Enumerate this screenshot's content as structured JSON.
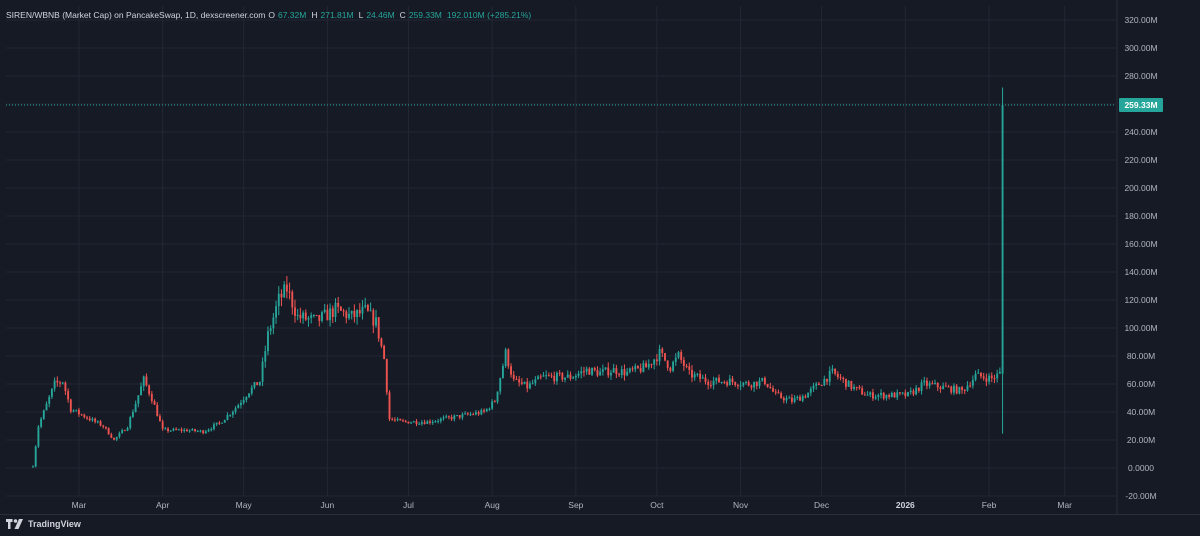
{
  "legend": {
    "symbol": "SIREN/WBNB (Market Cap) on PancakeSwap, 1D, dexscreener.com",
    "o_label": "O",
    "o_value": "67.32M",
    "h_label": "H",
    "h_value": "271.81M",
    "l_label": "L",
    "l_value": "24.46M",
    "c_label": "C",
    "c_value": "259.33M",
    "change": "192.010M (+285.21%)"
  },
  "last_price_badge": "259.33M",
  "branding": "TradingView",
  "colors": {
    "background": "#161a25",
    "grid": "#232734",
    "up": "#26a69a",
    "down": "#ef5350",
    "axis_text": "#b2b5be",
    "price_line": "#26a69a"
  },
  "chart_data": {
    "type": "candlestick",
    "title": "SIREN/WBNB (Market Cap) on PancakeSwap, 1D, dexscreener.com",
    "y_unit": "USD market cap (millions)",
    "ylim": [
      -20,
      330
    ],
    "y_ticks": [
      -20,
      0,
      20,
      40,
      60,
      80,
      100,
      120,
      140,
      160,
      180,
      200,
      220,
      240,
      260,
      280,
      300,
      320
    ],
    "y_tick_labels": [
      "-20.00M",
      "0.0000",
      "20.00M",
      "40.00M",
      "60.00M",
      "80.00M",
      "100.00M",
      "120.00M",
      "140.00M",
      "160.00M",
      "180.00M",
      "200.00M",
      "220.00M",
      "240.00M",
      "260.00M",
      "280.00M",
      "300.00M",
      "320.00M"
    ],
    "x_range": [
      "2025-02-02",
      "2026-03-20"
    ],
    "x_ticks": [
      {
        "label": "Mar",
        "date": "2025-03-01",
        "bold": false
      },
      {
        "label": "Apr",
        "date": "2025-04-01",
        "bold": false
      },
      {
        "label": "May",
        "date": "2025-05-01",
        "bold": false
      },
      {
        "label": "Jun",
        "date": "2025-06-01",
        "bold": false
      },
      {
        "label": "Jul",
        "date": "2025-07-01",
        "bold": false
      },
      {
        "label": "Aug",
        "date": "2025-08-01",
        "bold": false
      },
      {
        "label": "Sep",
        "date": "2025-09-01",
        "bold": false
      },
      {
        "label": "Oct",
        "date": "2025-10-01",
        "bold": false
      },
      {
        "label": "Nov",
        "date": "2025-11-01",
        "bold": false
      },
      {
        "label": "Dec",
        "date": "2025-12-01",
        "bold": false
      },
      {
        "label": "2026",
        "date": "2026-01-01",
        "bold": true
      },
      {
        "label": "Feb",
        "date": "2026-02-01",
        "bold": false
      },
      {
        "label": "Mar",
        "date": "2026-03-01",
        "bold": false
      }
    ],
    "grid": true,
    "last_close": 259.33,
    "first_date": "2025-02-12",
    "anchors": [
      [
        "2025-02-12",
        2
      ],
      [
        "2025-02-14",
        30
      ],
      [
        "2025-02-17",
        45
      ],
      [
        "2025-02-20",
        60
      ],
      [
        "2025-02-23",
        62
      ],
      [
        "2025-02-26",
        42
      ],
      [
        "2025-03-05",
        35
      ],
      [
        "2025-03-10",
        30
      ],
      [
        "2025-03-14",
        20
      ],
      [
        "2025-03-19",
        30
      ],
      [
        "2025-03-25",
        63
      ],
      [
        "2025-03-28",
        50
      ],
      [
        "2025-04-01",
        27
      ],
      [
        "2025-04-10",
        27
      ],
      [
        "2025-04-16",
        26
      ],
      [
        "2025-04-22",
        32
      ],
      [
        "2025-04-28",
        43
      ],
      [
        "2025-05-03",
        55
      ],
      [
        "2025-05-07",
        62
      ],
      [
        "2025-05-10",
        95
      ],
      [
        "2025-05-14",
        120
      ],
      [
        "2025-05-17",
        128
      ],
      [
        "2025-05-21",
        108
      ],
      [
        "2025-05-28",
        105
      ],
      [
        "2025-06-04",
        113
      ],
      [
        "2025-06-10",
        108
      ],
      [
        "2025-06-15",
        112
      ],
      [
        "2025-06-19",
        104
      ],
      [
        "2025-06-22",
        78
      ],
      [
        "2025-06-24",
        35
      ],
      [
        "2025-06-28",
        33
      ],
      [
        "2025-07-08",
        33
      ],
      [
        "2025-07-20",
        37
      ],
      [
        "2025-07-29",
        40
      ],
      [
        "2025-08-02",
        48
      ],
      [
        "2025-08-06",
        82
      ],
      [
        "2025-08-09",
        62
      ],
      [
        "2025-08-14",
        58
      ],
      [
        "2025-08-20",
        65
      ],
      [
        "2025-08-30",
        65
      ],
      [
        "2025-09-05",
        70
      ],
      [
        "2025-09-10",
        68
      ],
      [
        "2025-09-15",
        70
      ],
      [
        "2025-09-20",
        68
      ],
      [
        "2025-09-27",
        72
      ],
      [
        "2025-10-02",
        82
      ],
      [
        "2025-10-06",
        72
      ],
      [
        "2025-10-09",
        80
      ],
      [
        "2025-10-13",
        67
      ],
      [
        "2025-10-20",
        62
      ],
      [
        "2025-10-28",
        62
      ],
      [
        "2025-11-04",
        60
      ],
      [
        "2025-11-10",
        62
      ],
      [
        "2025-11-14",
        52
      ],
      [
        "2025-11-20",
        48
      ],
      [
        "2025-11-25",
        52
      ],
      [
        "2025-11-30",
        60
      ],
      [
        "2025-12-05",
        68
      ],
      [
        "2025-12-12",
        58
      ],
      [
        "2025-12-18",
        52
      ],
      [
        "2025-12-25",
        52
      ],
      [
        "2026-01-02",
        52
      ],
      [
        "2026-01-08",
        60
      ],
      [
        "2026-01-14",
        58
      ],
      [
        "2026-01-22",
        55
      ],
      [
        "2026-01-27",
        66
      ],
      [
        "2026-02-02",
        64
      ],
      [
        "2026-02-05",
        67.32
      ]
    ],
    "final_candle": {
      "date": "2026-02-06",
      "open": 67.32,
      "high": 271.81,
      "low": 24.46,
      "close": 259.33
    }
  }
}
